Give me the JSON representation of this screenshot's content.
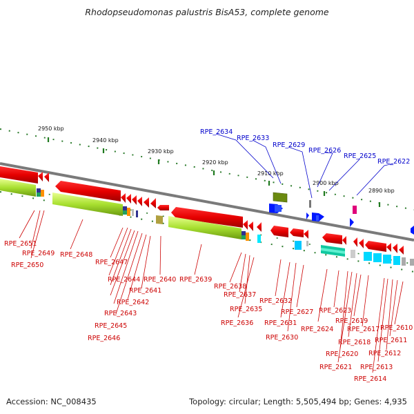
{
  "title": "Rhodopseudomonas palustris BisA53, complete genome",
  "footer": {
    "accession": "Accession: NC_008435",
    "stats": "Topology: circular; Length: 5,505,494 bp; Genes: 4,935"
  },
  "colors": {
    "forward_label": "#0000cc",
    "reverse_label": "#cc0000",
    "backbone": "#888888",
    "tick": "#2a7a2a"
  },
  "scale_labels": [
    "2950 kbp",
    "2940 kbp",
    "2930 kbp",
    "2920 kbp",
    "2910 kbp",
    "2900 kbp",
    "2890 kbp"
  ],
  "forward_genes": [
    "RPE_2634",
    "RPE_2633",
    "RPE_2629",
    "RPE_2626",
    "RPE_2625",
    "RPE_2622"
  ],
  "reverse_genes": [
    "RPE_2651",
    "RPE_2649",
    "RPE_2650",
    "RPE_2648",
    "RPE_2647",
    "RPE_2644",
    "RPE_2640",
    "RPE_2641",
    "RPE_2642",
    "RPE_2643",
    "RPE_2645",
    "RPE_2646",
    "RPE_2639",
    "RPE_2638",
    "RPE_2637",
    "RPE_2635",
    "RPE_2636",
    "RPE_2632",
    "RPE_2631",
    "RPE_2627",
    "RPE_2630",
    "RPE_2623",
    "RPE_2624",
    "RPE_2619",
    "RPE_2617",
    "RPE_2618",
    "RPE_2620",
    "RPE_2621",
    "RPE_2610",
    "RPE_2611",
    "RPE_2612",
    "RPE_2613",
    "RPE_2614"
  ]
}
